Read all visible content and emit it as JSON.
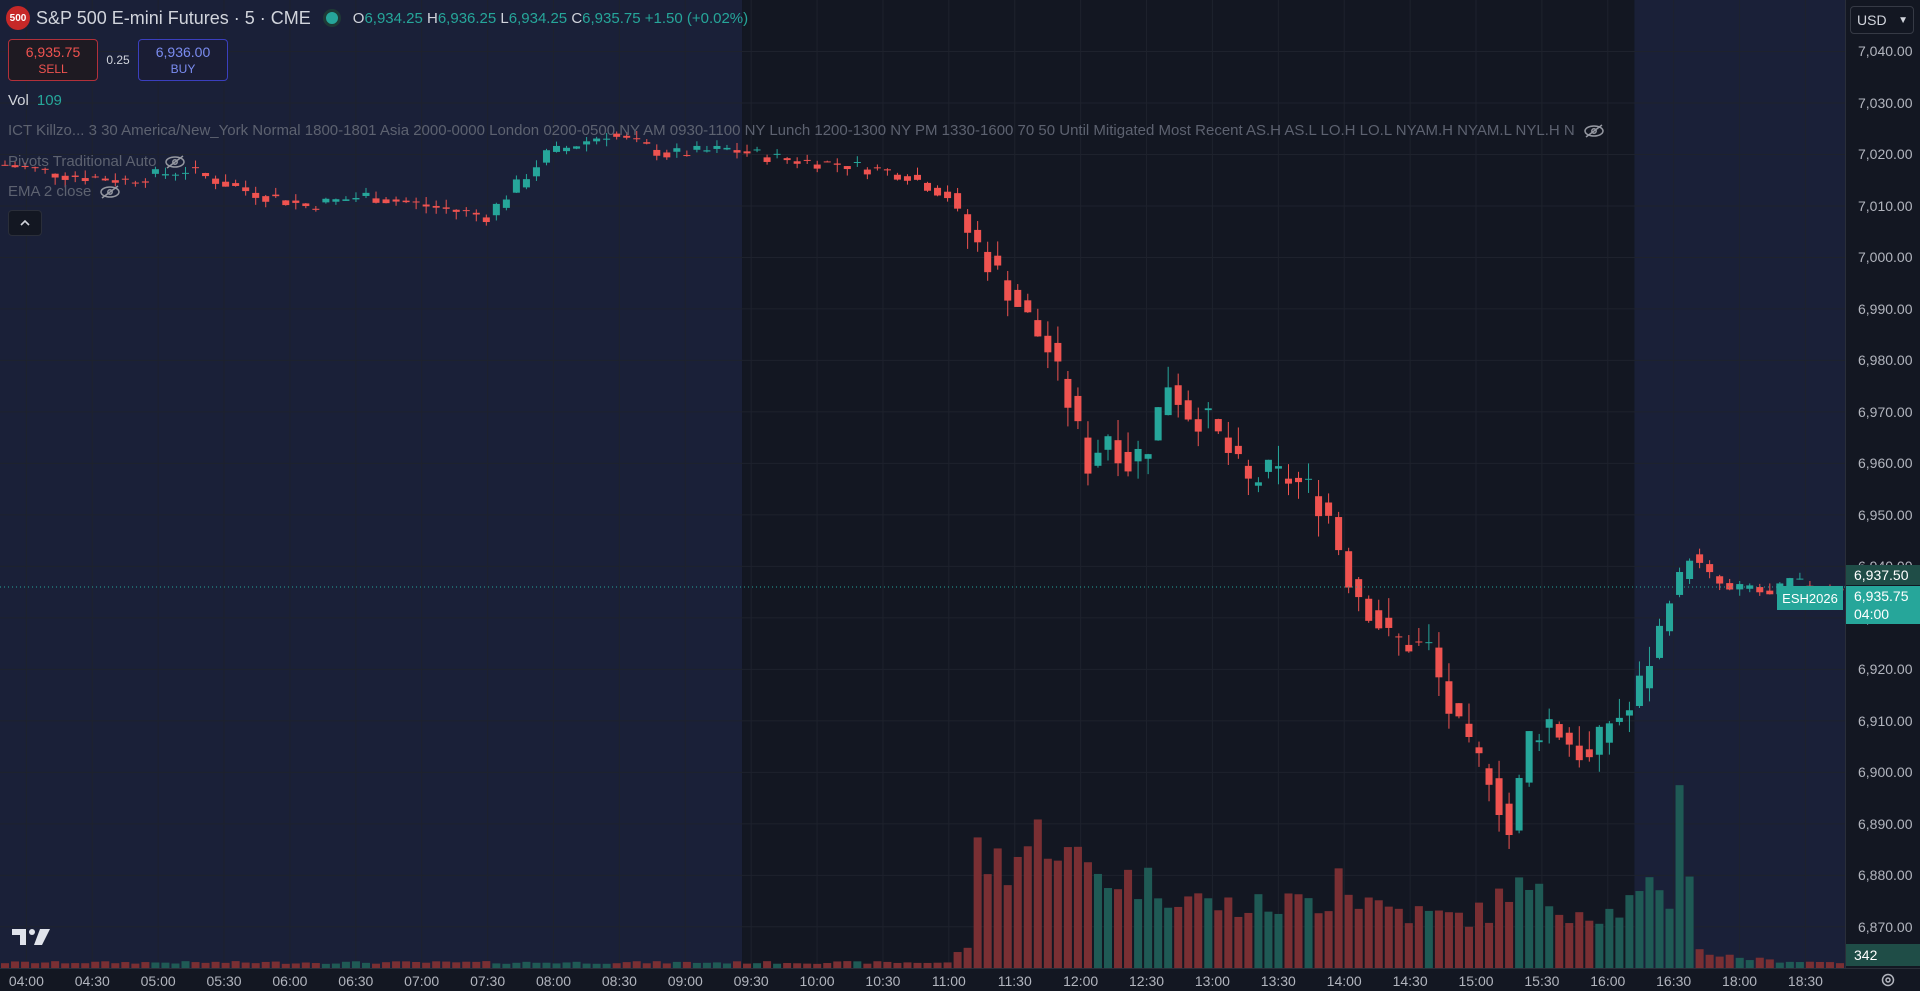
{
  "header": {
    "badge": "500",
    "title": "S&P 500 E-mini Futures · 5 · CME",
    "ohlc": {
      "o_label": "O",
      "o": "6,934.25",
      "h_label": "H",
      "h": "6,936.25",
      "l_label": "L",
      "l": "6,934.25",
      "c_label": "C",
      "c": "6,935.75",
      "change": "+1.50 (+0.02%)"
    }
  },
  "trade": {
    "sell_price": "6,935.75",
    "sell_label": "SELL",
    "spread": "0.25",
    "buy_price": "6,936.00",
    "buy_label": "BUY"
  },
  "indicators": {
    "vol_label": "Vol",
    "vol_value": "109",
    "ict": "ICT Killzo...  3 30 America/New_York Normal 1800-1801 Asia 2000-0000 London 0200-0500 NY AM 0930-1100 NY Lunch 1200-1300 NY PM 1330-1600 70 50 Until Mitigated Most Recent AS.H AS.L LO.H LO.L NYAM.H NYAM.L NYL.H N",
    "pivots": "Pivots Traditional Auto",
    "ema": "EMA 2 close"
  },
  "currency": "USD",
  "price_labels": {
    "upper": "6,937.50",
    "last": "6,935.75",
    "countdown": "04:00",
    "symbol": "ESH2026",
    "volume": "342"
  },
  "colors": {
    "up": "#26a69a",
    "down": "#ef5350",
    "session_shade": "#1a2038",
    "background": "#131722"
  },
  "chart_data": {
    "type": "candlestick",
    "title": "S&P 500 E-mini Futures · 5 · CME",
    "y_ticks": [
      "6,870.00",
      "6,880.00",
      "6,890.00",
      "6,900.00",
      "6,910.00",
      "6,920.00",
      "6,930.00",
      "6,940.00",
      "6,950.00",
      "6,960.00",
      "6,970.00",
      "6,980.00",
      "6,990.00",
      "7,000.00",
      "7,010.00",
      "7,020.00",
      "7,030.00",
      "7,040.00"
    ],
    "x_ticks": [
      "04:00",
      "04:30",
      "05:00",
      "05:30",
      "06:00",
      "06:30",
      "07:00",
      "07:30",
      "08:00",
      "08:30",
      "09:00",
      "09:30",
      "10:00",
      "10:30",
      "11:00",
      "11:30",
      "12:00",
      "12:30",
      "13:00",
      "13:30",
      "14:00",
      "14:30",
      "15:00",
      "15:30",
      "16:00",
      "16:30",
      "18:00",
      "18:30"
    ],
    "ylim": [
      6862,
      7050
    ],
    "grid": true,
    "price_path": [
      [
        0,
        7018
      ],
      [
        6,
        7016
      ],
      [
        12,
        7015
      ],
      [
        18,
        7017
      ],
      [
        24,
        7013
      ],
      [
        30,
        7010
      ],
      [
        36,
        7012
      ],
      [
        42,
        7010
      ],
      [
        48,
        7008
      ],
      [
        54,
        7020
      ],
      [
        60,
        7024
      ],
      [
        66,
        7020
      ],
      [
        72,
        7021
      ],
      [
        78,
        7019
      ],
      [
        84,
        7018
      ],
      [
        90,
        7016
      ],
      [
        94,
        7012
      ],
      [
        96,
        7005
      ],
      [
        100,
        6994
      ],
      [
        104,
        6982
      ],
      [
        106,
        6972
      ],
      [
        108,
        6960
      ],
      [
        110,
        6966
      ],
      [
        112,
        6960
      ],
      [
        114,
        6964
      ],
      [
        116,
        6976
      ],
      [
        118,
        6970
      ],
      [
        120,
        6968
      ],
      [
        122,
        6962
      ],
      [
        124,
        6956
      ],
      [
        126,
        6958
      ],
      [
        128,
        6957
      ],
      [
        130,
        6955
      ],
      [
        132,
        6950
      ],
      [
        134,
        6938
      ],
      [
        136,
        6932
      ],
      [
        138,
        6926
      ],
      [
        140,
        6925
      ],
      [
        142,
        6924
      ],
      [
        144,
        6912
      ],
      [
        146,
        6904
      ],
      [
        148,
        6900
      ],
      [
        150,
        6888
      ],
      [
        152,
        6907
      ],
      [
        154,
        6910
      ],
      [
        156,
        6906
      ],
      [
        158,
        6902
      ],
      [
        160,
        6910
      ],
      [
        162,
        6912
      ],
      [
        164,
        6922
      ],
      [
        166,
        6934
      ],
      [
        168,
        6942
      ],
      [
        170,
        6938
      ],
      [
        172,
        6935
      ],
      [
        174,
        6936
      ],
      [
        176,
        6934
      ],
      [
        178,
        6937
      ],
      [
        180,
        6936
      ],
      [
        183,
        6936
      ]
    ],
    "volume_profile": [
      [
        0,
        6
      ],
      [
        94,
        6
      ],
      [
        96,
        25
      ],
      [
        97,
        120
      ],
      [
        100,
        115
      ],
      [
        104,
        150
      ],
      [
        106,
        120
      ],
      [
        110,
        100
      ],
      [
        115,
        90
      ],
      [
        120,
        70
      ],
      [
        124,
        65
      ],
      [
        128,
        70
      ],
      [
        132,
        75
      ],
      [
        133,
        130
      ],
      [
        134,
        80
      ],
      [
        140,
        60
      ],
      [
        144,
        55
      ],
      [
        148,
        60
      ],
      [
        150,
        90
      ],
      [
        152,
        80
      ],
      [
        156,
        65
      ],
      [
        160,
        60
      ],
      [
        164,
        80
      ],
      [
        166,
        70
      ],
      [
        167,
        240
      ],
      [
        168,
        90
      ],
      [
        169,
        25
      ],
      [
        170,
        15
      ],
      [
        176,
        8
      ],
      [
        183,
        6
      ]
    ],
    "volume_max": 250,
    "bar_count": 184,
    "sessions": [
      {
        "start_bar": 0,
        "end_bar": 74
      },
      {
        "start_bar": 163,
        "end_bar": 184
      }
    ]
  }
}
